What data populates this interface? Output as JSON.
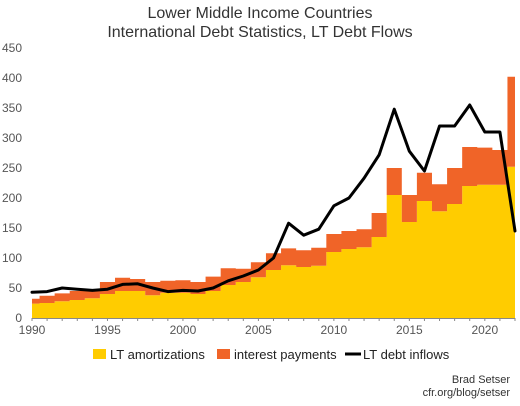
{
  "chart_data": {
    "type": "bar",
    "title": "Lower Middle Income Countries",
    "subtitle": "International Debt Statistics, LT Debt Flows",
    "xlabel": "",
    "ylabel": "",
    "x_ticks": [
      "1990",
      "1995",
      "2000",
      "2005",
      "2010",
      "2015",
      "2020"
    ],
    "y_ticks": [
      "0",
      "50",
      "100",
      "150",
      "200",
      "250",
      "300",
      "350",
      "400",
      "450"
    ],
    "ylim": [
      0,
      450
    ],
    "xlim": [
      1990,
      2022
    ],
    "stacked": true,
    "grid": false,
    "legend_position": "bottom",
    "categories": [
      1990,
      1991,
      1992,
      1993,
      1994,
      1995,
      1996,
      1997,
      1998,
      1999,
      2000,
      2001,
      2002,
      2003,
      2004,
      2005,
      2006,
      2007,
      2008,
      2009,
      2010,
      2011,
      2012,
      2013,
      2014,
      2015,
      2016,
      2017,
      2018,
      2019,
      2020,
      2021,
      2022
    ],
    "series": [
      {
        "name": "LT amortizations",
        "kind": "area",
        "color": "#ffcc00",
        "values": [
          24,
          25,
          28,
          30,
          33,
          40,
          45,
          45,
          38,
          42,
          42,
          40,
          45,
          55,
          60,
          68,
          80,
          88,
          85,
          87,
          110,
          115,
          118,
          135,
          205,
          160,
          195,
          178,
          190,
          220,
          222,
          222,
          252
        ]
      },
      {
        "name": "interest payments",
        "kind": "area",
        "color": "#f06428",
        "values": [
          8,
          12,
          13,
          15,
          15,
          20,
          22,
          20,
          22,
          20,
          21,
          20,
          24,
          28,
          22,
          25,
          28,
          28,
          28,
          30,
          30,
          30,
          30,
          40,
          45,
          45,
          47,
          45,
          60,
          65,
          62,
          58,
          150
        ]
      },
      {
        "name": "LT debt inflows",
        "kind": "line",
        "color": "#000000",
        "values": [
          43,
          44,
          50,
          48,
          46,
          48,
          56,
          57,
          50,
          44,
          46,
          45,
          50,
          62,
          70,
          80,
          100,
          158,
          138,
          148,
          187,
          200,
          233,
          272,
          348,
          278,
          245,
          320,
          320,
          355,
          310,
          310,
          145
        ]
      }
    ]
  },
  "credit": {
    "author": "Brad Setser",
    "source": "cfr.org/blog/setser"
  }
}
